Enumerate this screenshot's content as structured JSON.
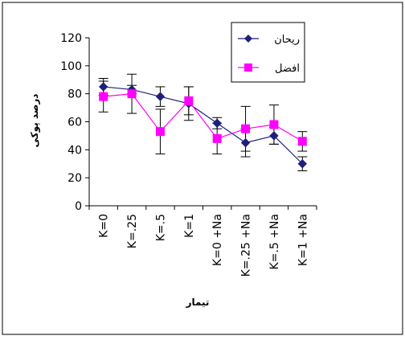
{
  "chart_data": {
    "type": "line",
    "title": "",
    "xlabel": "تیمار",
    "ylabel": "درصد پوکی",
    "categories": [
      "K=0",
      "K=.25",
      "K=.5",
      "K=1",
      "K=0 +Na",
      "K=.25 +Na",
      "K=.5 +Na",
      "K=1 +Na"
    ],
    "ylim": [
      0,
      120
    ],
    "yticks": [
      "0",
      "20",
      "40",
      "60",
      "80",
      "100",
      "120"
    ],
    "grid": false,
    "legend_position": "top-right",
    "series": [
      {
        "name": "ریحان",
        "color": "#1f1f7a",
        "marker": "diamond",
        "values": [
          85,
          83,
          78,
          73,
          59,
          45,
          50,
          30
        ],
        "error": [
          6,
          3,
          7,
          12,
          4,
          10,
          6,
          5
        ]
      },
      {
        "name": "افضل",
        "color": "#ff00ff",
        "marker": "square",
        "values": [
          78,
          80,
          53,
          75,
          48,
          55,
          58,
          46
        ],
        "error": [
          11,
          14,
          16,
          10,
          11,
          16,
          14,
          7
        ]
      }
    ]
  }
}
